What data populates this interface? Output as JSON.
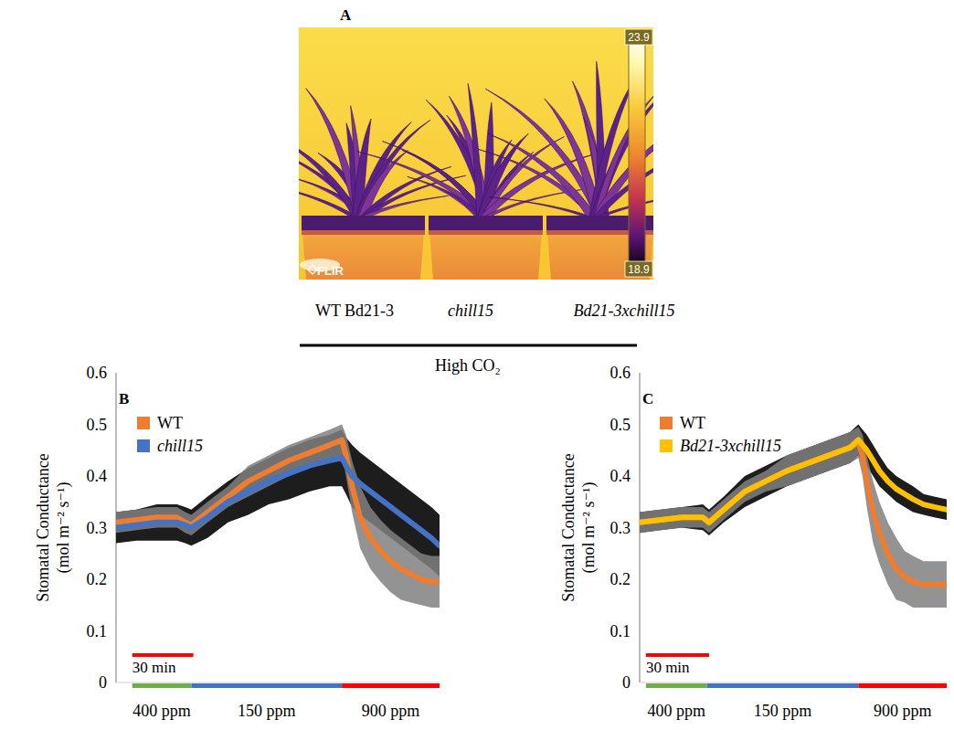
{
  "thermal_image": {
    "letter": "A",
    "logo": "FLIR",
    "colorbar": {
      "min": 18.9,
      "max": 23.9
    },
    "labels": [
      "WT Bd21-3",
      "chill15",
      "Bd21-3xchill15"
    ],
    "condition": "High CO₂"
  },
  "chart_data": [
    {
      "type": "line",
      "panel": "B",
      "y_label": "Stomatal Conductance (mol m⁻² s⁻¹)",
      "x": [
        0,
        10,
        20,
        30,
        34,
        37,
        45,
        55,
        65,
        75,
        85,
        95,
        105,
        111,
        113,
        116,
        120,
        125,
        130,
        135,
        140,
        145,
        150,
        155,
        159
      ],
      "xlim": [
        0,
        159
      ],
      "ylim": [
        0,
        0.6
      ],
      "yticks": [
        0,
        0.1,
        0.2,
        0.3,
        0.4,
        0.5,
        0.6
      ],
      "tick_labels": "y",
      "grid": false,
      "legend": "top-left",
      "series": [
        {
          "name": "WT",
          "color": "#ed7d31",
          "values": [
            0.31,
            0.315,
            0.32,
            0.32,
            0.31,
            0.305,
            0.33,
            0.36,
            0.39,
            0.41,
            0.43,
            0.445,
            0.46,
            0.47,
            0.44,
            0.38,
            0.32,
            0.28,
            0.255,
            0.235,
            0.22,
            0.21,
            0.2,
            0.195,
            0.195
          ],
          "errors": [
            0.02,
            0.02,
            0.02,
            0.02,
            0.02,
            0.02,
            0.02,
            0.02,
            0.03,
            0.03,
            0.03,
            0.03,
            0.03,
            0.03,
            0.04,
            0.05,
            0.06,
            0.06,
            0.06,
            0.06,
            0.06,
            0.055,
            0.05,
            0.05,
            0.05
          ]
        },
        {
          "name": "chill15",
          "color": "#4472c4",
          "values": [
            0.3,
            0.305,
            0.31,
            0.31,
            0.305,
            0.3,
            0.32,
            0.35,
            0.37,
            0.39,
            0.405,
            0.42,
            0.43,
            0.435,
            0.42,
            0.4,
            0.385,
            0.37,
            0.355,
            0.34,
            0.325,
            0.31,
            0.295,
            0.28,
            0.265
          ],
          "errors": [
            0.03,
            0.03,
            0.035,
            0.035,
            0.035,
            0.035,
            0.04,
            0.04,
            0.045,
            0.045,
            0.05,
            0.05,
            0.05,
            0.055,
            0.055,
            0.06,
            0.06,
            0.06,
            0.06,
            0.06,
            0.06,
            0.06,
            0.06,
            0.06,
            0.06
          ]
        }
      ],
      "phases": [
        {
          "label": "400 ppm",
          "start": 8,
          "end": 37,
          "color": "#70ad47"
        },
        {
          "label": "150 ppm",
          "start": 37,
          "end": 111,
          "color": "#4472c4"
        },
        {
          "label": "900 ppm",
          "start": 111,
          "end": 159,
          "color": "#ff0000"
        }
      ],
      "scale_bar": {
        "label": "30 min",
        "start": 8,
        "length": 30,
        "color": "#ff0000"
      }
    },
    {
      "type": "line",
      "panel": "C",
      "y_label": "Stomatal Conductance (mol m⁻² s⁻¹)",
      "x": [
        0,
        10,
        20,
        30,
        33,
        40,
        50,
        60,
        70,
        80,
        90,
        100,
        104,
        106,
        108,
        111,
        114,
        118,
        122,
        126,
        130,
        135,
        140,
        146
      ],
      "xlim": [
        0,
        146
      ],
      "ylim": [
        0,
        0.6
      ],
      "yticks": [
        0,
        0.1,
        0.2,
        0.3,
        0.4,
        0.5,
        0.6
      ],
      "tick_labels": "y",
      "grid": false,
      "legend": "top-left",
      "series": [
        {
          "name": "WT",
          "color": "#ed7d31",
          "values": [
            0.31,
            0.315,
            0.32,
            0.32,
            0.31,
            0.335,
            0.37,
            0.39,
            0.41,
            0.425,
            0.44,
            0.455,
            0.465,
            0.44,
            0.39,
            0.33,
            0.29,
            0.25,
            0.22,
            0.205,
            0.195,
            0.19,
            0.19,
            0.19
          ],
          "errors": [
            0.02,
            0.02,
            0.02,
            0.02,
            0.02,
            0.02,
            0.02,
            0.02,
            0.03,
            0.03,
            0.03,
            0.03,
            0.03,
            0.04,
            0.05,
            0.06,
            0.06,
            0.06,
            0.06,
            0.05,
            0.05,
            0.045,
            0.045,
            0.045
          ]
        },
        {
          "name": "Bd21-3xchill15",
          "color": "#ffc000",
          "values": [
            0.31,
            0.315,
            0.32,
            0.32,
            0.31,
            0.335,
            0.37,
            0.39,
            0.41,
            0.425,
            0.44,
            0.455,
            0.47,
            0.46,
            0.45,
            0.43,
            0.41,
            0.39,
            0.375,
            0.365,
            0.355,
            0.345,
            0.34,
            0.335
          ],
          "errors": [
            0.02,
            0.02,
            0.02,
            0.025,
            0.025,
            0.025,
            0.03,
            0.03,
            0.03,
            0.03,
            0.03,
            0.03,
            0.03,
            0.03,
            0.03,
            0.03,
            0.03,
            0.025,
            0.025,
            0.025,
            0.025,
            0.02,
            0.02,
            0.02
          ]
        }
      ],
      "phases": [
        {
          "label": "400 ppm",
          "start": 3,
          "end": 32,
          "color": "#70ad47"
        },
        {
          "label": "150 ppm",
          "start": 32,
          "end": 104,
          "color": "#4472c4"
        },
        {
          "label": "900 ppm",
          "start": 104,
          "end": 146,
          "color": "#ff0000"
        }
      ],
      "scale_bar": {
        "label": "30 min",
        "start": 3,
        "length": 30,
        "color": "#ff0000"
      }
    }
  ]
}
